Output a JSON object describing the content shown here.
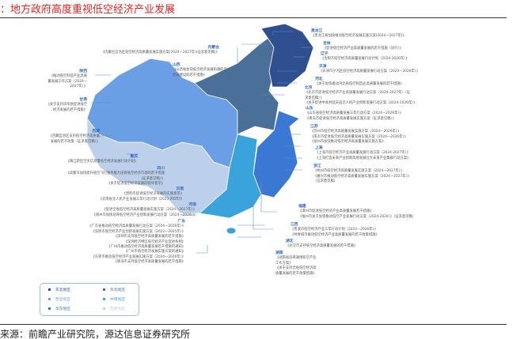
{
  "header": {
    "title": "：地方政府高度重视低空经济产业发展"
  },
  "source": "来源：前瞻产业研究院，源达信息证券研究所",
  "region_colors": {
    "东北地区": "#2f4f8f",
    "华北地区": "#4a6f99",
    "西北地区": "#6a9fe6",
    "中南地区": "#3aa3dc",
    "华东地区": "#3b78d4",
    "西南地区": "#bcd0ec"
  },
  "legend": [
    {
      "label": "东北地区",
      "color": "#2f4f8f"
    },
    {
      "label": "华北地区",
      "color": "#4a6f99"
    },
    {
      "label": "西北地区",
      "color": "#6a9fe6"
    },
    {
      "label": "中南地区",
      "color": "#3aa3dc"
    },
    {
      "label": "华东地区",
      "color": "#3b78d4"
    },
    {
      "label": "西南地区",
      "color": "#bcd0ec"
    }
  ],
  "notes": {
    "neimenggu": {
      "province": "内蒙古",
      "lines": [
        "《内蒙古自治区低空经济高质量发展实施方案(2024—2027年)(征求意见稿)》"
      ]
    },
    "shanxi": {
      "province": "山西",
      "lines": [
        "《山西省加快低空经济发展和通航示",
        "范省建设的若干措施》"
      ]
    },
    "shaanxi": {
      "province": "陕西",
      "lines": [
        "《推动低空制造产业高质",
        "量发展工作方案（2024—",
        "2027年）》"
      ]
    },
    "gansu": {
      "province": "甘肃",
      "lines": [
        "《关于支持庆阳县促进低空",
        "经济发展的若干措施》"
      ]
    },
    "xizang": {
      "province": "西藏",
      "lines": [
        "《西藏自治区支持低空经济高质量",
        "发展的若干政策（征求意见稿）》"
      ]
    },
    "chongqing": {
      "province": "重庆",
      "lines": [
        "《两江新区空天信息暨低空经济发展行动计划》"
      ]
    },
    "sichuan": {
      "province": "四川",
      "lines": [
        "《成都市加快提升低空飞行服务能力培育低空经济市场的若干措施",
        "（征求意见稿）》",
        "《关于促进低空经济发展的指导意见》"
      ]
    },
    "yunnan": {
      "province": "云南",
      "lines": [
        "《昆明市促进低空经济发展的实施意见》",
        "《云南省无人机产业发展三年行动计划（2023-2025）》"
      ]
    },
    "henan": {
      "province": "河南",
      "lines": [
        "《促进全省低空经济高质量发展实施方案（2024—2027年）》",
        "《郑州市加快培育低空经济产业创新发展行动方案（2024—2026）》"
      ]
    },
    "guangdong": {
      "province": "广东",
      "lines": [
        "《广东省推动低空经济高质量发展行动方案（2024—2026年）》",
        "《深圳市低空经济产业创新发展实施方案（2022—2025年）》",
        "《深圳市支持低空经济高质量发展的若干措施》",
        "《深圳经济特区低空经济产业促进条例》",
        "《广州市推动低空经济高质量发展若干措施的通知》",
        "《广州市低空经济发展实施方案的通知》",
        "《东莞市推动低空经济产业发展实施方案（2024—2026年）》",
        "《珠海市支持低空经济高质量发展的若干措施》"
      ]
    },
    "heilongjiang": {
      "province": "黑龙江",
      "lines": [
        "《黑龙江省加快推动低空经济发展实施方案(2024—2027年)》"
      ]
    },
    "jilin": {
      "province": "吉林",
      "lines": [
        "《促进低空经济产业高质量发展的若干措施（试行）》"
      ]
    },
    "liaoning": {
      "province": "辽宁",
      "lines": [
        "《沈阳市低空经济高质量发展行动计划（2024-2026年）》"
      ]
    },
    "tianjin": {
      "province": "天津",
      "lines": [
        "《天津市宁河区低空经济高质量发展行动方案（2024—2026年）》"
      ]
    },
    "hebei": {
      "province": "河北",
      "lines": [
        "《关于加快推动河北省低空制造业高质量发展的若干措施》"
      ]
    },
    "beijing": {
      "province": "北京",
      "lines": [
        "《北京市促进低空经济产业高质量发展行动方案（2024-2027年）（征",
        "求意见稿）》",
        "《关于促进中关村延庆园无人机产业创新发展行动方案（2024-2026年）》"
      ]
    },
    "shandong": {
      "province": "山东",
      "lines": [
        "《山东省低空经济高质量发展三年行动方案（2024—2026年）》",
        "《青岛市促进低空经济高质量发展实施方案（征求意见稿）》"
      ]
    },
    "jiangsu": {
      "province": "江苏",
      "lines": [
        "《苏州市低空经济高质量发展实施方案（2024－2026年）》",
        "《南京市促进低空经济高质量发展实施方案（2024—2026年）》",
        "《徐州市加快推动低空经济高质量发展实施方案》"
      ]
    },
    "shanghai": {
      "province": "上海",
      "lines": [
        "《上海市低空经济产业高质量发展行动方案（2024-2027年）》",
        "《上海打造未来产业创新高地发展壮大未来产业集群行动方案》"
      ]
    },
    "zhejiang": {
      "province": "浙江",
      "lines": [
        "《杭州市低空经济高质量发展实施方案（2024—2027年）》",
        "《嘉兴市推动低空经济高质量发展实施方案（2024—2027年）》",
        "（征求意见稿）"
      ]
    },
    "fujian": {
      "province": "福建",
      "lines": [
        "《漳州市促进低空经济产业高质量发展若干措施》",
        "《福州市关于加快推动低空产业发展行动方案（2024-2026）》（征求意见稿）"
      ]
    },
    "jiangxi": {
      "province": "江西",
      "lines": [
        "《贵溪市低空经济产业三年行动计划（2024－2026年）》",
        "《共青城市推动低空经济产业高质量发展的若干政策措施》"
      ]
    },
    "hubei": {
      "province": "湖北",
      "lines": [
        "《武汉市支持低空经济高质量发展的若干措施》"
      ]
    },
    "hunan": {
      "province": "湖南",
      "lines": [
        "《湖南省培育通用航空产业",
        "工作方案》",
        "《关于支持全省低空经济高",
        "质量发展的若干政策措施》"
      ]
    }
  }
}
